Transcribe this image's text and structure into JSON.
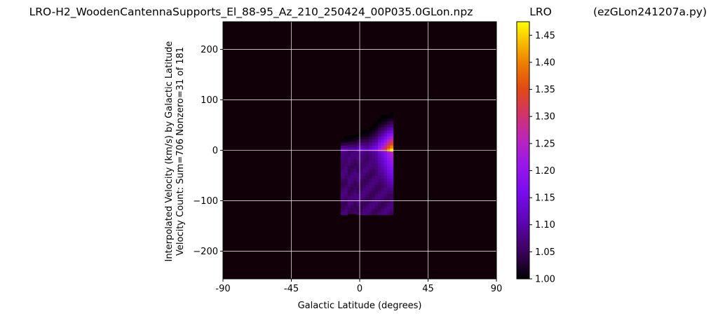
{
  "chart_data": {
    "type": "heatmap",
    "title": "LRO-H2_WoodenCantennaSupports_El_88-95_Az_210_250424_00P035.0GLon.npz",
    "title_right": "(ezGLon241207a.py)",
    "xlabel": "Galactic Latitude (degrees)",
    "ylabel_line1": "Interpolated Velocity (km/s) by Galactic Latitude",
    "ylabel_line2": "Velocity Count: Sum=706 Nonzero=31 of 181",
    "xlim": [
      -90,
      90
    ],
    "ylim": [
      -255,
      255
    ],
    "x_ticks": [
      -90,
      -45,
      0,
      45,
      90
    ],
    "x_tick_labels": [
      "-90",
      "-45",
      "0",
      "45",
      "90"
    ],
    "y_ticks": [
      200,
      100,
      0,
      -100,
      -200
    ],
    "y_tick_labels": [
      "200",
      "100",
      "0",
      "−100",
      "−200"
    ],
    "grid": true,
    "colormap": "gnuplot",
    "colorbar": {
      "label": "LRO",
      "range": [
        1.0,
        1.475
      ],
      "ticks": [
        1.0,
        1.05,
        1.1,
        1.15,
        1.2,
        1.25,
        1.3,
        1.35,
        1.4,
        1.45
      ],
      "tick_labels": [
        "1.00",
        "1.05",
        "1.10",
        "1.15",
        "1.20",
        "1.25",
        "1.30",
        "1.35",
        "1.40",
        "1.45"
      ]
    },
    "nonzero_columns": [
      {
        "x": -12.5,
        "vmin": -128,
        "vmax": 22,
        "peak": 1.14
      },
      {
        "x": -10,
        "vmin": -128,
        "vmax": 24,
        "peak": 1.13
      },
      {
        "x": -8,
        "vmin": -126,
        "vmax": 25,
        "peak": 1.12
      },
      {
        "x": -6,
        "vmin": -126,
        "vmax": 27,
        "peak": 1.12
      },
      {
        "x": -4,
        "vmin": -126,
        "vmax": 29,
        "peak": 1.11
      },
      {
        "x": -2,
        "vmin": -128,
        "vmax": 32,
        "peak": 1.13
      },
      {
        "x": 0,
        "vmin": -128,
        "vmax": 35,
        "peak": 1.15
      },
      {
        "x": 2,
        "vmin": -128,
        "vmax": 38,
        "peak": 1.13
      },
      {
        "x": 4,
        "vmin": -128,
        "vmax": 40,
        "peak": 1.12
      },
      {
        "x": 6,
        "vmin": -128,
        "vmax": 45,
        "peak": 1.14
      },
      {
        "x": 8,
        "vmin": -128,
        "vmax": 50,
        "peak": 1.16
      },
      {
        "x": 10,
        "vmin": -128,
        "vmax": 55,
        "peak": 1.18
      },
      {
        "x": 12,
        "vmin": -128,
        "vmax": 62,
        "peak": 1.24
      },
      {
        "x": 14,
        "vmin": -128,
        "vmax": 65,
        "peak": 1.28
      },
      {
        "x": 16,
        "vmin": -128,
        "vmax": 68,
        "peak": 1.34
      },
      {
        "x": 18,
        "vmin": -128,
        "vmax": 70,
        "peak": 1.42
      },
      {
        "x": 20,
        "vmin": -128,
        "vmax": 72,
        "peak": 1.47
      }
    ]
  }
}
